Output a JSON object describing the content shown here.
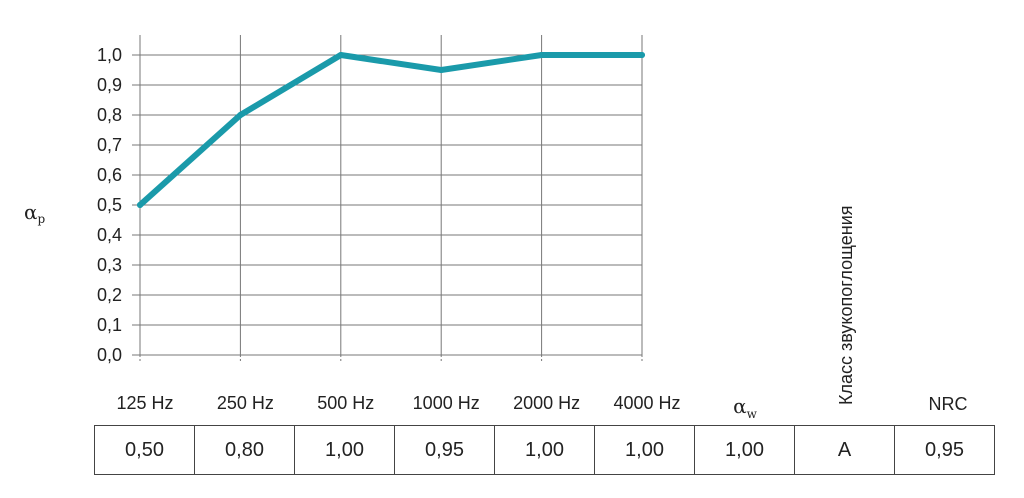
{
  "chart_data": {
    "type": "line",
    "ylabel": "αp",
    "ylabel_main": "α",
    "ylabel_sub": "p",
    "ylim": [
      0,
      1.0
    ],
    "yticks": [
      "0,0",
      "0,1",
      "0,2",
      "0,3",
      "0,4",
      "0,5",
      "0,6",
      "0,7",
      "0,8",
      "0,9",
      "1,0"
    ],
    "categories": [
      "125 Hz",
      "250 Hz",
      "500 Hz",
      "1000 Hz",
      "2000 Hz",
      "4000 Hz"
    ],
    "series": [
      {
        "values": [
          0.5,
          0.8,
          1.0,
          0.95,
          1.0,
          1.0
        ]
      }
    ],
    "grid": true,
    "color": "#1a9aaa"
  },
  "table": {
    "headers": {
      "aw_main": "α",
      "aw_sub": "w",
      "class": "Класс звукопоглощения",
      "nrc": "NRC"
    },
    "values": [
      "0,50",
      "0,80",
      "1,00",
      "0,95",
      "1,00",
      "1,00",
      "1,00",
      "A",
      "0,95"
    ]
  }
}
